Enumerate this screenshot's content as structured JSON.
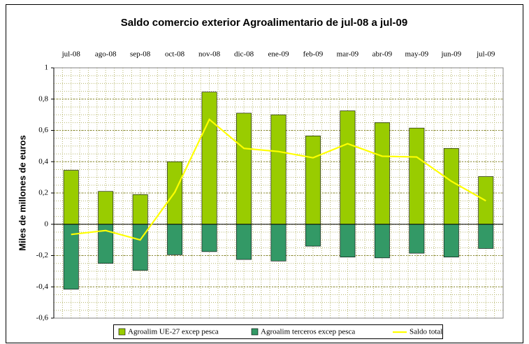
{
  "chart_data": {
    "type": "bar",
    "title": "Saldo comercio exterior Agroalimentario de jul-08 a jul-09",
    "y_label": "Miles de millones de euros",
    "categories": [
      "jul-08",
      "ago-08",
      "sep-08",
      "oct-08",
      "nov-08",
      "dic-08",
      "ene-09",
      "feb-09",
      "mar-09",
      "abr-09",
      "may-09",
      "jun-09",
      "jul-09"
    ],
    "series": [
      {
        "name": "Agroalim UE-27 excep pesca",
        "color": "#99cc00",
        "type": "bar",
        "values": [
          0.345,
          0.21,
          0.19,
          0.4,
          0.845,
          0.71,
          0.7,
          0.565,
          0.725,
          0.65,
          0.615,
          0.485,
          0.305
        ]
      },
      {
        "name": "Agroalim terceros excep pesca",
        "color": "#339966",
        "type": "bar",
        "values": [
          -0.415,
          -0.25,
          -0.295,
          -0.195,
          -0.175,
          -0.225,
          -0.235,
          -0.14,
          -0.21,
          -0.215,
          -0.185,
          -0.21,
          -0.155
        ]
      },
      {
        "name": "Saldo total",
        "color": "#ffff00",
        "type": "line",
        "values": [
          -0.065,
          -0.04,
          -0.1,
          0.205,
          0.67,
          0.485,
          0.465,
          0.425,
          0.515,
          0.435,
          0.43,
          0.275,
          0.15
        ]
      }
    ],
    "ylim": [
      -0.6,
      1
    ],
    "yticks": [
      {
        "value": -0.6,
        "label": "-0,6"
      },
      {
        "value": -0.4,
        "label": "-0,4"
      },
      {
        "value": -0.2,
        "label": "-0,2"
      },
      0,
      {
        "value": 0.2,
        "label": "0,2"
      },
      {
        "value": 0.4,
        "label": "0,4"
      },
      {
        "value": 0.6,
        "label": "0,6"
      },
      {
        "value": 0.8,
        "label": "0,8"
      },
      1
    ],
    "grid": true,
    "legend": "bottom"
  }
}
